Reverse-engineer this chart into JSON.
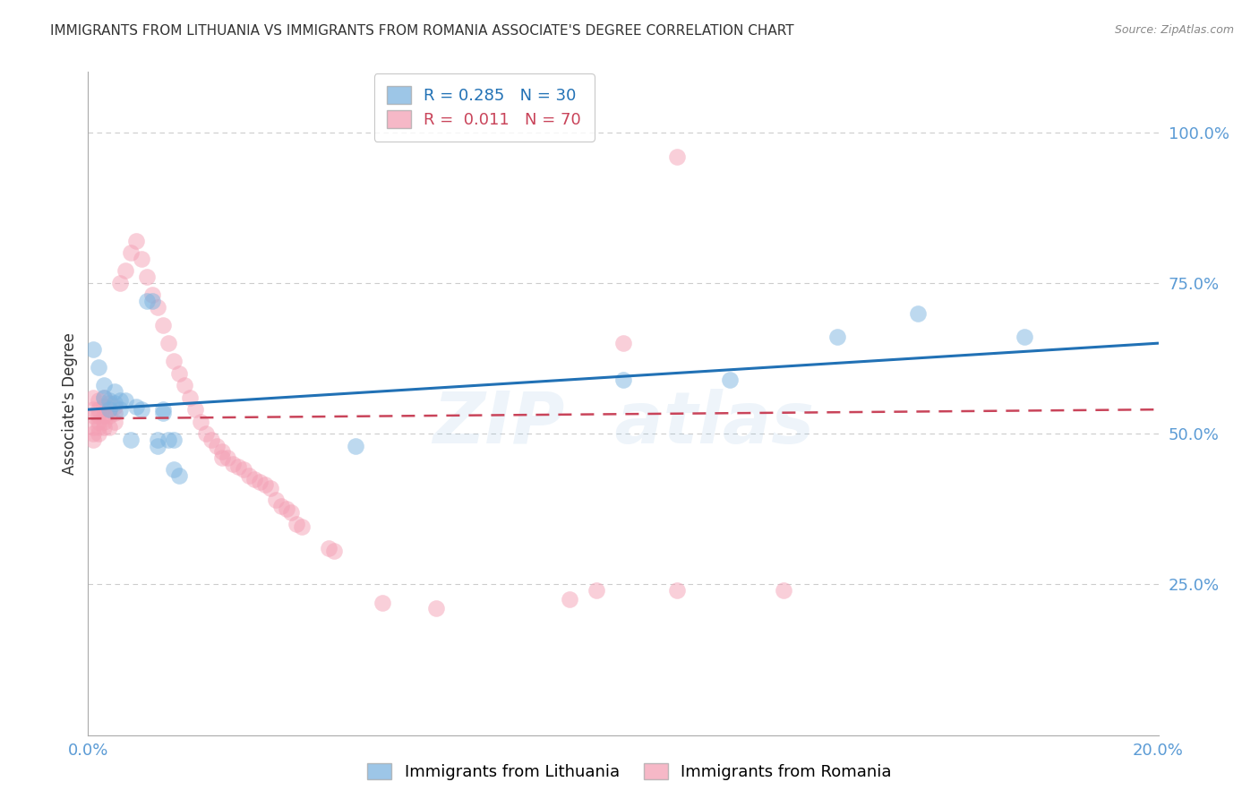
{
  "title": "IMMIGRANTS FROM LITHUANIA VS IMMIGRANTS FROM ROMANIA ASSOCIATE'S DEGREE CORRELATION CHART",
  "source_text": "Source: ZipAtlas.com",
  "ylabel": "Associate's Degree",
  "xmin": 0.0,
  "xmax": 0.2,
  "ymin": 0.0,
  "ymax": 1.1,
  "blue_scatter": [
    [
      0.001,
      0.64
    ],
    [
      0.002,
      0.61
    ],
    [
      0.003,
      0.58
    ],
    [
      0.003,
      0.56
    ],
    [
      0.004,
      0.555
    ],
    [
      0.004,
      0.54
    ],
    [
      0.005,
      0.57
    ],
    [
      0.005,
      0.55
    ],
    [
      0.006,
      0.555
    ],
    [
      0.006,
      0.54
    ],
    [
      0.007,
      0.555
    ],
    [
      0.008,
      0.49
    ],
    [
      0.009,
      0.545
    ],
    [
      0.01,
      0.54
    ],
    [
      0.011,
      0.72
    ],
    [
      0.012,
      0.72
    ],
    [
      0.013,
      0.49
    ],
    [
      0.013,
      0.48
    ],
    [
      0.014,
      0.54
    ],
    [
      0.014,
      0.535
    ],
    [
      0.015,
      0.49
    ],
    [
      0.016,
      0.49
    ],
    [
      0.016,
      0.44
    ],
    [
      0.017,
      0.43
    ],
    [
      0.05,
      0.48
    ],
    [
      0.1,
      0.59
    ],
    [
      0.12,
      0.59
    ],
    [
      0.14,
      0.66
    ],
    [
      0.155,
      0.7
    ],
    [
      0.175,
      0.66
    ]
  ],
  "pink_scatter": [
    [
      0.001,
      0.56
    ],
    [
      0.001,
      0.54
    ],
    [
      0.001,
      0.53
    ],
    [
      0.001,
      0.51
    ],
    [
      0.001,
      0.5
    ],
    [
      0.001,
      0.49
    ],
    [
      0.002,
      0.555
    ],
    [
      0.002,
      0.54
    ],
    [
      0.002,
      0.53
    ],
    [
      0.002,
      0.52
    ],
    [
      0.002,
      0.51
    ],
    [
      0.002,
      0.5
    ],
    [
      0.003,
      0.56
    ],
    [
      0.003,
      0.545
    ],
    [
      0.003,
      0.53
    ],
    [
      0.003,
      0.52
    ],
    [
      0.003,
      0.51
    ],
    [
      0.004,
      0.55
    ],
    [
      0.004,
      0.54
    ],
    [
      0.004,
      0.53
    ],
    [
      0.004,
      0.51
    ],
    [
      0.005,
      0.545
    ],
    [
      0.005,
      0.535
    ],
    [
      0.005,
      0.52
    ],
    [
      0.006,
      0.75
    ],
    [
      0.007,
      0.77
    ],
    [
      0.008,
      0.8
    ],
    [
      0.009,
      0.82
    ],
    [
      0.01,
      0.79
    ],
    [
      0.011,
      0.76
    ],
    [
      0.012,
      0.73
    ],
    [
      0.013,
      0.71
    ],
    [
      0.014,
      0.68
    ],
    [
      0.015,
      0.65
    ],
    [
      0.016,
      0.62
    ],
    [
      0.017,
      0.6
    ],
    [
      0.018,
      0.58
    ],
    [
      0.019,
      0.56
    ],
    [
      0.02,
      0.54
    ],
    [
      0.021,
      0.52
    ],
    [
      0.022,
      0.5
    ],
    [
      0.023,
      0.49
    ],
    [
      0.024,
      0.48
    ],
    [
      0.025,
      0.47
    ],
    [
      0.025,
      0.46
    ],
    [
      0.026,
      0.46
    ],
    [
      0.027,
      0.45
    ],
    [
      0.028,
      0.445
    ],
    [
      0.029,
      0.44
    ],
    [
      0.03,
      0.43
    ],
    [
      0.031,
      0.425
    ],
    [
      0.032,
      0.42
    ],
    [
      0.033,
      0.415
    ],
    [
      0.034,
      0.41
    ],
    [
      0.035,
      0.39
    ],
    [
      0.036,
      0.38
    ],
    [
      0.037,
      0.375
    ],
    [
      0.038,
      0.37
    ],
    [
      0.039,
      0.35
    ],
    [
      0.04,
      0.345
    ],
    [
      0.045,
      0.31
    ],
    [
      0.046,
      0.305
    ],
    [
      0.055,
      0.22
    ],
    [
      0.065,
      0.21
    ],
    [
      0.09,
      0.225
    ],
    [
      0.095,
      0.24
    ],
    [
      0.1,
      0.65
    ],
    [
      0.11,
      0.24
    ],
    [
      0.11,
      0.96
    ],
    [
      0.13,
      0.24
    ]
  ],
  "blue_line_x": [
    0.0,
    0.2
  ],
  "blue_line_y": [
    0.54,
    0.65
  ],
  "pink_line_x": [
    0.0,
    0.2
  ],
  "pink_line_y": [
    0.525,
    0.54
  ],
  "blue_color": "#7cb4e0",
  "pink_color": "#f4a0b5",
  "blue_line_color": "#2171b5",
  "pink_line_color": "#c9445a",
  "grid_color": "#cccccc",
  "axis_color": "#5b9bd5",
  "background_color": "#ffffff"
}
